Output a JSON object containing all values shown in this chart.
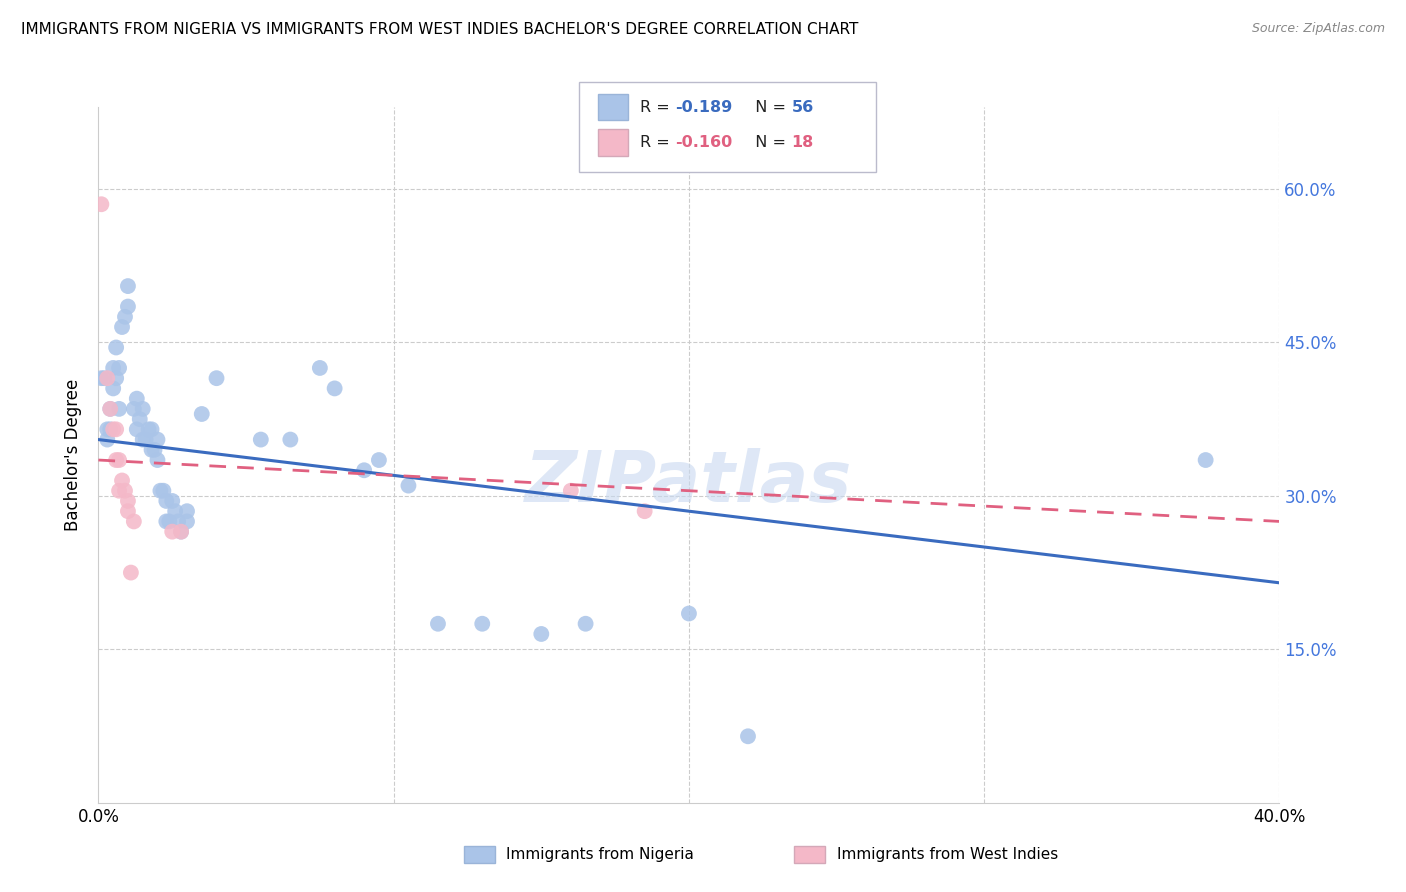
{
  "title": "IMMIGRANTS FROM NIGERIA VS IMMIGRANTS FROM WEST INDIES BACHELOR'S DEGREE CORRELATION CHART",
  "source": "Source: ZipAtlas.com",
  "ylabel": "Bachelor's Degree",
  "yticks_labels": [
    "60.0%",
    "45.0%",
    "30.0%",
    "15.0%"
  ],
  "ytick_vals": [
    0.6,
    0.45,
    0.3,
    0.15
  ],
  "xlim": [
    0.0,
    0.4
  ],
  "ylim": [
    0.0,
    0.68
  ],
  "xtick_labels": [
    "0.0%",
    "40.0%"
  ],
  "xtick_vals": [
    0.0,
    0.4
  ],
  "legend_r_nigeria": "-0.189",
  "legend_n_nigeria": "56",
  "legend_r_west_indies": "-0.160",
  "legend_n_west_indies": "18",
  "legend_label_nigeria": "Immigrants from Nigeria",
  "legend_label_west_indies": "Immigrants from West Indies",
  "color_nigeria": "#aac4e8",
  "color_west_indies": "#f4b8c8",
  "trendline_nigeria_color": "#3a6bbf",
  "trendline_west_indies_color": "#e06080",
  "watermark": "ZIPatlas",
  "nigeria_points": [
    [
      0.001,
      0.415
    ],
    [
      0.002,
      0.415
    ],
    [
      0.003,
      0.365
    ],
    [
      0.003,
      0.355
    ],
    [
      0.004,
      0.385
    ],
    [
      0.004,
      0.365
    ],
    [
      0.005,
      0.425
    ],
    [
      0.005,
      0.405
    ],
    [
      0.006,
      0.445
    ],
    [
      0.006,
      0.415
    ],
    [
      0.007,
      0.425
    ],
    [
      0.007,
      0.385
    ],
    [
      0.008,
      0.465
    ],
    [
      0.009,
      0.475
    ],
    [
      0.01,
      0.505
    ],
    [
      0.01,
      0.485
    ],
    [
      0.012,
      0.385
    ],
    [
      0.013,
      0.395
    ],
    [
      0.013,
      0.365
    ],
    [
      0.014,
      0.375
    ],
    [
      0.015,
      0.385
    ],
    [
      0.015,
      0.355
    ],
    [
      0.016,
      0.355
    ],
    [
      0.017,
      0.365
    ],
    [
      0.018,
      0.365
    ],
    [
      0.018,
      0.345
    ],
    [
      0.019,
      0.345
    ],
    [
      0.02,
      0.355
    ],
    [
      0.02,
      0.335
    ],
    [
      0.021,
      0.305
    ],
    [
      0.022,
      0.305
    ],
    [
      0.023,
      0.295
    ],
    [
      0.023,
      0.275
    ],
    [
      0.024,
      0.275
    ],
    [
      0.025,
      0.295
    ],
    [
      0.026,
      0.285
    ],
    [
      0.027,
      0.275
    ],
    [
      0.028,
      0.265
    ],
    [
      0.03,
      0.285
    ],
    [
      0.03,
      0.275
    ],
    [
      0.035,
      0.38
    ],
    [
      0.04,
      0.415
    ],
    [
      0.055,
      0.355
    ],
    [
      0.065,
      0.355
    ],
    [
      0.075,
      0.425
    ],
    [
      0.08,
      0.405
    ],
    [
      0.09,
      0.325
    ],
    [
      0.095,
      0.335
    ],
    [
      0.105,
      0.31
    ],
    [
      0.115,
      0.175
    ],
    [
      0.13,
      0.175
    ],
    [
      0.15,
      0.165
    ],
    [
      0.165,
      0.175
    ],
    [
      0.2,
      0.185
    ],
    [
      0.22,
      0.065
    ],
    [
      0.375,
      0.335
    ]
  ],
  "west_indies_points": [
    [
      0.001,
      0.585
    ],
    [
      0.003,
      0.415
    ],
    [
      0.004,
      0.385
    ],
    [
      0.005,
      0.365
    ],
    [
      0.006,
      0.365
    ],
    [
      0.006,
      0.335
    ],
    [
      0.007,
      0.335
    ],
    [
      0.007,
      0.305
    ],
    [
      0.008,
      0.315
    ],
    [
      0.009,
      0.305
    ],
    [
      0.01,
      0.295
    ],
    [
      0.01,
      0.285
    ],
    [
      0.011,
      0.225
    ],
    [
      0.012,
      0.275
    ],
    [
      0.025,
      0.265
    ],
    [
      0.028,
      0.265
    ],
    [
      0.16,
      0.305
    ],
    [
      0.185,
      0.285
    ]
  ],
  "nigeria_trend": {
    "x_start": 0.0,
    "y_start": 0.355,
    "x_end": 0.4,
    "y_end": 0.215
  },
  "west_indies_trend": {
    "x_start": 0.0,
    "y_start": 0.335,
    "x_end": 0.4,
    "y_end": 0.275
  }
}
